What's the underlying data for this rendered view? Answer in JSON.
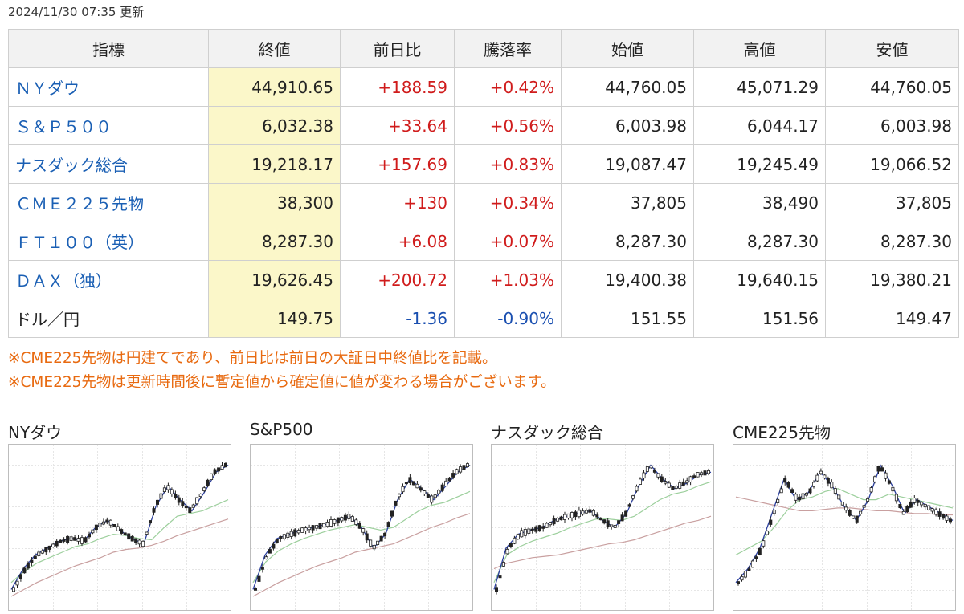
{
  "updated": "2024/11/30 07:35 更新",
  "table": {
    "headers": [
      "指標",
      "終値",
      "前日比",
      "騰落率",
      "始値",
      "高値",
      "安値"
    ],
    "rows": [
      {
        "name": "ＮＹダウ",
        "link": true,
        "close": "44,910.65",
        "change": "+188.59",
        "pct": "+0.42%",
        "open": "44,760.05",
        "high": "45,071.29",
        "low": "44,760.05",
        "dir": "up"
      },
      {
        "name": "Ｓ＆Ｐ５００",
        "link": true,
        "close": "6,032.38",
        "change": "+33.64",
        "pct": "+0.56%",
        "open": "6,003.98",
        "high": "6,044.17",
        "low": "6,003.98",
        "dir": "up"
      },
      {
        "name": "ナスダック総合",
        "link": true,
        "close": "19,218.17",
        "change": "+157.69",
        "pct": "+0.83%",
        "open": "19,087.47",
        "high": "19,245.49",
        "low": "19,066.52",
        "dir": "up"
      },
      {
        "name": "ＣＭＥ２２５先物",
        "link": true,
        "close": "38,300",
        "change": "+130",
        "pct": "+0.34%",
        "open": "37,805",
        "high": "38,490",
        "low": "37,805",
        "dir": "up"
      },
      {
        "name": "ＦＴ１００（英）",
        "link": true,
        "close": "8,287.30",
        "change": "+6.08",
        "pct": "+0.07%",
        "open": "8,287.30",
        "high": "8,287.30",
        "low": "8,287.30",
        "dir": "up"
      },
      {
        "name": "ＤＡＸ（独）",
        "link": true,
        "close": "19,626.45",
        "change": "+200.72",
        "pct": "+1.03%",
        "open": "19,400.38",
        "high": "19,640.15",
        "low": "19,380.21",
        "dir": "up"
      },
      {
        "name": "ドル／円",
        "link": false,
        "close": "149.75",
        "change": "-1.36",
        "pct": "-0.90%",
        "open": "151.55",
        "high": "151.56",
        "low": "149.47",
        "dir": "down"
      }
    ]
  },
  "notes": [
    "※CME225先物は円建てであり、前日比は前日の大証日中終値比を記載。",
    "※CME225先物は更新時間後に暫定値から確定値に値が変わる場合がございます。"
  ],
  "charts": [
    {
      "title": "NYダウ",
      "trend": [
        0.05,
        0.2,
        0.3,
        0.35,
        0.4,
        0.42,
        0.4,
        0.5,
        0.55,
        0.48,
        0.42,
        0.38,
        0.65,
        0.8,
        0.7,
        0.62,
        0.75,
        0.9,
        0.95
      ],
      "ma1": [
        0.1,
        0.18,
        0.24,
        0.28,
        0.32,
        0.36,
        0.38,
        0.42,
        0.45,
        0.44,
        0.42,
        0.41,
        0.5,
        0.58,
        0.6,
        0.62,
        0.66,
        0.7
      ],
      "ma2": [
        0.0,
        0.05,
        0.1,
        0.14,
        0.18,
        0.22,
        0.25,
        0.28,
        0.32,
        0.34,
        0.35,
        0.37,
        0.4,
        0.44,
        0.47,
        0.5,
        0.53,
        0.56
      ]
    },
    {
      "title": "S&P500",
      "trend": [
        0.05,
        0.3,
        0.42,
        0.45,
        0.48,
        0.5,
        0.52,
        0.55,
        0.58,
        0.5,
        0.35,
        0.45,
        0.7,
        0.85,
        0.78,
        0.7,
        0.8,
        0.9,
        0.95
      ],
      "ma1": [
        0.1,
        0.25,
        0.33,
        0.38,
        0.42,
        0.45,
        0.48,
        0.5,
        0.52,
        0.5,
        0.48,
        0.5,
        0.56,
        0.62,
        0.66,
        0.68,
        0.72,
        0.76
      ],
      "ma2": [
        0.0,
        0.05,
        0.1,
        0.14,
        0.18,
        0.22,
        0.25,
        0.28,
        0.32,
        0.34,
        0.36,
        0.38,
        0.42,
        0.46,
        0.5,
        0.53,
        0.57,
        0.6
      ]
    },
    {
      "title": "ナスダック総合",
      "trend": [
        0.05,
        0.35,
        0.45,
        0.48,
        0.5,
        0.55,
        0.58,
        0.6,
        0.62,
        0.55,
        0.5,
        0.6,
        0.8,
        0.95,
        0.85,
        0.78,
        0.82,
        0.88,
        0.9
      ],
      "ma1": [
        0.1,
        0.3,
        0.36,
        0.4,
        0.43,
        0.46,
        0.5,
        0.53,
        0.56,
        0.56,
        0.55,
        0.58,
        0.64,
        0.7,
        0.74,
        0.76,
        0.8,
        0.83
      ],
      "ma2": [
        0.2,
        0.24,
        0.26,
        0.28,
        0.29,
        0.3,
        0.32,
        0.34,
        0.36,
        0.38,
        0.39,
        0.41,
        0.44,
        0.47,
        0.5,
        0.53,
        0.55,
        0.58
      ]
    },
    {
      "title": "CME225先物",
      "trend": [
        0.1,
        0.2,
        0.35,
        0.6,
        0.85,
        0.7,
        0.75,
        0.9,
        0.8,
        0.65,
        0.55,
        0.7,
        0.95,
        0.8,
        0.6,
        0.7,
        0.65,
        0.6,
        0.55
      ],
      "ma1": [
        0.3,
        0.35,
        0.4,
        0.5,
        0.62,
        0.7,
        0.72,
        0.76,
        0.78,
        0.74,
        0.7,
        0.7,
        0.74,
        0.72,
        0.7,
        0.68,
        0.66,
        0.64
      ],
      "ma2": [
        0.72,
        0.7,
        0.68,
        0.66,
        0.64,
        0.62,
        0.62,
        0.63,
        0.64,
        0.64,
        0.63,
        0.62,
        0.62,
        0.61,
        0.6,
        0.6,
        0.59,
        0.59
      ]
    }
  ]
}
